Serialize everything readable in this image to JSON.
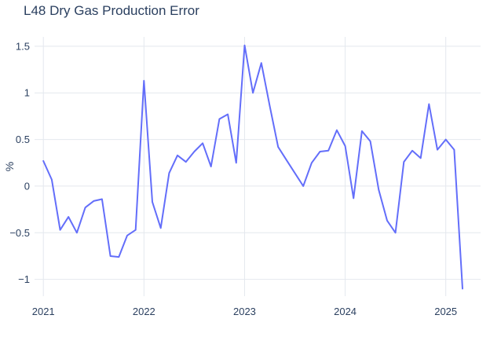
{
  "title": "L48 Dry Gas Production Error",
  "colors": {
    "line": "#636efa",
    "text": "#2a3f5f",
    "grid": "#e4e8ee",
    "background": "#ffffff"
  },
  "chart_data": {
    "type": "line",
    "title": "L48 Dry Gas Production Error",
    "xlabel": "",
    "ylabel": "%",
    "legend": "none",
    "grid": "on",
    "x_tick_labels": [
      "2021",
      "2022",
      "2023",
      "2024",
      "2025"
    ],
    "x_tick_month_index": [
      0,
      12,
      24,
      36,
      48
    ],
    "y_tick_labels": [
      "1.5",
      "1",
      "0.5",
      "0",
      "−0.5",
      "−1"
    ],
    "y_tick_values": [
      1.5,
      1,
      0.5,
      0,
      -0.5,
      -1
    ],
    "xlim_months": [
      -1.05,
      52.15
    ],
    "ylim": [
      -1.18,
      1.6
    ],
    "series": [
      {
        "name": "L48 dry gas production error (%)",
        "x": [
          "2021-01",
          "2021-02",
          "2021-03",
          "2021-04",
          "2021-05",
          "2021-06",
          "2021-07",
          "2021-08",
          "2021-09",
          "2021-10",
          "2021-11",
          "2021-12",
          "2022-01",
          "2022-02",
          "2022-03",
          "2022-04",
          "2022-05",
          "2022-06",
          "2022-07",
          "2022-08",
          "2022-09",
          "2022-10",
          "2022-11",
          "2022-12",
          "2023-01",
          "2023-02",
          "2023-03",
          "2023-04",
          "2023-05",
          "2023-06",
          "2023-07",
          "2023-08",
          "2023-09",
          "2023-10",
          "2023-11",
          "2023-12",
          "2024-01",
          "2024-02",
          "2024-03",
          "2024-04",
          "2024-05",
          "2024-06",
          "2024-07",
          "2024-08",
          "2024-09",
          "2024-10",
          "2024-11",
          "2024-12",
          "2025-01",
          "2025-02",
          "2025-03"
        ],
        "values": [
          0.27,
          0.07,
          -0.47,
          -0.33,
          -0.5,
          -0.23,
          -0.16,
          -0.14,
          -0.75,
          -0.76,
          -0.53,
          -0.47,
          1.13,
          -0.17,
          -0.45,
          0.14,
          0.33,
          0.26,
          0.37,
          0.46,
          0.21,
          0.72,
          0.77,
          0.25,
          1.51,
          1.0,
          1.32,
          0.86,
          0.42,
          0.28,
          0.14,
          0.0,
          0.25,
          0.37,
          0.38,
          0.6,
          0.43,
          -0.13,
          0.59,
          0.48,
          -0.04,
          -0.37,
          -0.5,
          0.26,
          0.38,
          0.3,
          0.88,
          0.39,
          0.5,
          0.39,
          -1.1
        ]
      }
    ]
  }
}
